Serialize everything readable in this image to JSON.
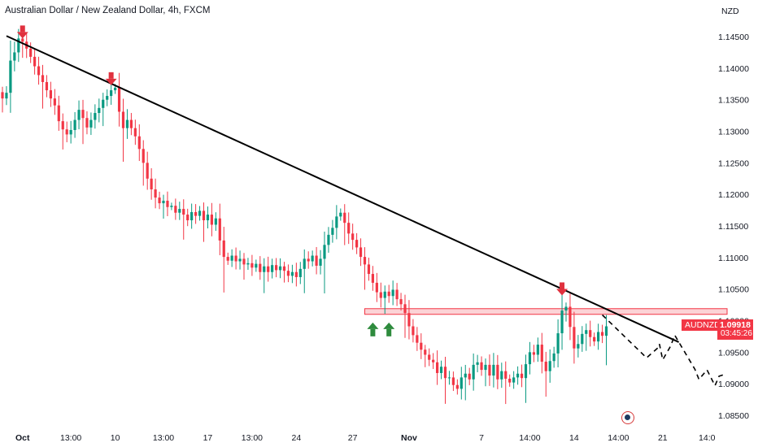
{
  "header": {
    "title": "Australian Dollar / New Zealand Dollar, 4h, FXCM"
  },
  "price_axis": {
    "currency": "NZD"
  },
  "price_tag": {
    "symbol": "AUDNZD",
    "last_price": "1.09918",
    "countdown": "03:45:26"
  },
  "colors": {
    "up": "#089981",
    "down": "#f23645",
    "zone": "#f23645",
    "arrow_down": "#e0313e",
    "arrow_up": "#2e8b3d",
    "trendline": "#000000"
  },
  "icons": {
    "logo": "tradingview-logo-icon",
    "sell_arrow": "arrow-down-icon",
    "buy_arrow": "arrow-up-icon"
  },
  "chart_data": {
    "type": "candlestick",
    "title": "Australian Dollar / New Zealand Dollar, 4h, FXCM",
    "y_ticks": [
      "1.14500",
      "1.14000",
      "1.13500",
      "1.13000",
      "1.12500",
      "1.12000",
      "1.11500",
      "1.11000",
      "1.10500",
      "1.10000",
      "1.09500",
      "1.09000",
      "1.08500"
    ],
    "ylim": [
      1.0832,
      1.1508
    ],
    "x_ticks": [
      {
        "label": "Oct",
        "bold": true,
        "bar": 5
      },
      {
        "label": "13:00",
        "bold": false,
        "bar": 17
      },
      {
        "label": "10",
        "bold": false,
        "bar": 28
      },
      {
        "label": "13:00",
        "bold": false,
        "bar": 40
      },
      {
        "label": "17",
        "bold": false,
        "bar": 51
      },
      {
        "label": "13:00",
        "bold": false,
        "bar": 62
      },
      {
        "label": "24",
        "bold": false,
        "bar": 73
      },
      {
        "label": "27",
        "bold": false,
        "bar": 87
      },
      {
        "label": "Nov",
        "bold": true,
        "bar": 101
      },
      {
        "label": "7",
        "bold": false,
        "bar": 119
      },
      {
        "label": "14:00",
        "bold": false,
        "bar": 131
      },
      {
        "label": "14",
        "bold": false,
        "bar": 142
      },
      {
        "label": "14:00",
        "bold": false,
        "bar": 153
      },
      {
        "label": "21",
        "bold": false,
        "bar": 164
      },
      {
        "label": "14:0",
        "bold": false,
        "bar": 175
      }
    ],
    "closes": [
      1.1352,
      1.1361,
      1.1412,
      1.1425,
      1.1447,
      1.1442,
      1.1431,
      1.1418,
      1.1403,
      1.1389,
      1.1378,
      1.1365,
      1.1352,
      1.1341,
      1.1316,
      1.1303,
      1.1295,
      1.1302,
      1.1318,
      1.1334,
      1.1321,
      1.1306,
      1.1318,
      1.1329,
      1.1337,
      1.135,
      1.1356,
      1.1365,
      1.1369,
      1.1331,
      1.1305,
      1.1318,
      1.1305,
      1.1292,
      1.1272,
      1.125,
      1.1225,
      1.1208,
      1.1195,
      1.1186,
      1.119,
      1.118,
      1.1182,
      1.1171,
      1.1177,
      1.1168,
      1.1159,
      1.1172,
      1.1166,
      1.1174,
      1.1159,
      1.1168,
      1.1152,
      1.1162,
      1.1127,
      1.1101,
      1.1095,
      1.1103,
      1.1094,
      1.1098,
      1.1089,
      1.1091,
      1.1084,
      1.109,
      1.1077,
      1.1086,
      1.1077,
      1.1088,
      1.108,
      1.1086,
      1.1079,
      1.1071,
      1.1077,
      1.1069,
      1.1082,
      1.1098,
      1.1094,
      1.1103,
      1.1087,
      1.1098,
      1.112,
      1.1136,
      1.1147,
      1.1165,
      1.1171,
      1.1155,
      1.1138,
      1.1128,
      1.1116,
      1.1101,
      1.1089,
      1.1074,
      1.106,
      1.1045,
      1.1036,
      1.1046,
      1.1039,
      1.1049,
      1.1034,
      1.1026,
      1.1012,
      1.0991,
      1.0977,
      1.0965,
      1.0954,
      1.0946,
      1.0938,
      1.0934,
      1.0917,
      1.0927,
      1.0909,
      1.091,
      1.0898,
      1.0892,
      1.091,
      1.0916,
      1.0907,
      1.093,
      1.0934,
      1.0922,
      1.093,
      1.0913,
      1.093,
      1.0907,
      1.092,
      1.0908,
      1.0902,
      1.091,
      1.0916,
      1.0909,
      1.0931,
      1.095,
      1.0946,
      1.0962,
      1.0935,
      1.092,
      1.0936,
      1.0948,
      1.098,
      1.1016,
      1.1022,
      1.099,
      1.0956,
      1.0963,
      1.0979,
      1.0985,
      1.0974,
      1.0967,
      1.0982,
      1.0976,
      1.0991
    ],
    "zone": {
      "top": 1.1019,
      "bottom": 1.101,
      "from_bar": 90,
      "to_bar": 180
    },
    "trendline": {
      "from": {
        "bar": 1,
        "price": 1.1451
      },
      "to": {
        "bar": 168,
        "price": 1.0966
      }
    },
    "projection": [
      {
        "bar": 149,
        "price": 1.1009
      },
      {
        "bar": 160,
        "price": 1.0941
      },
      {
        "bar": 163,
        "price": 1.0958
      },
      {
        "bar": 163.2,
        "price": 1.0963
      },
      {
        "bar": 164,
        "price": 1.0938
      },
      {
        "bar": 166,
        "price": 1.096
      },
      {
        "bar": 167,
        "price": 1.0977
      },
      {
        "bar": 172,
        "price": 1.0923
      },
      {
        "bar": 173,
        "price": 1.0907
      },
      {
        "bar": 175,
        "price": 1.0922
      },
      {
        "bar": 177,
        "price": 1.0897
      },
      {
        "bar": 178,
        "price": 1.0912
      },
      {
        "bar": 179,
        "price": 1.0914
      }
    ],
    "markers": [
      {
        "type": "arrow-down",
        "bar": 5,
        "price": 1.1456
      },
      {
        "type": "arrow-down",
        "bar": 27,
        "price": 1.1382
      },
      {
        "type": "arrow-down",
        "bar": 139,
        "price": 1.1049
      },
      {
        "type": "arrow-up",
        "bar": 92,
        "price": 1.0988
      },
      {
        "type": "arrow-up",
        "bar": 96,
        "price": 1.0988
      }
    ],
    "last_price": 1.09918
  }
}
